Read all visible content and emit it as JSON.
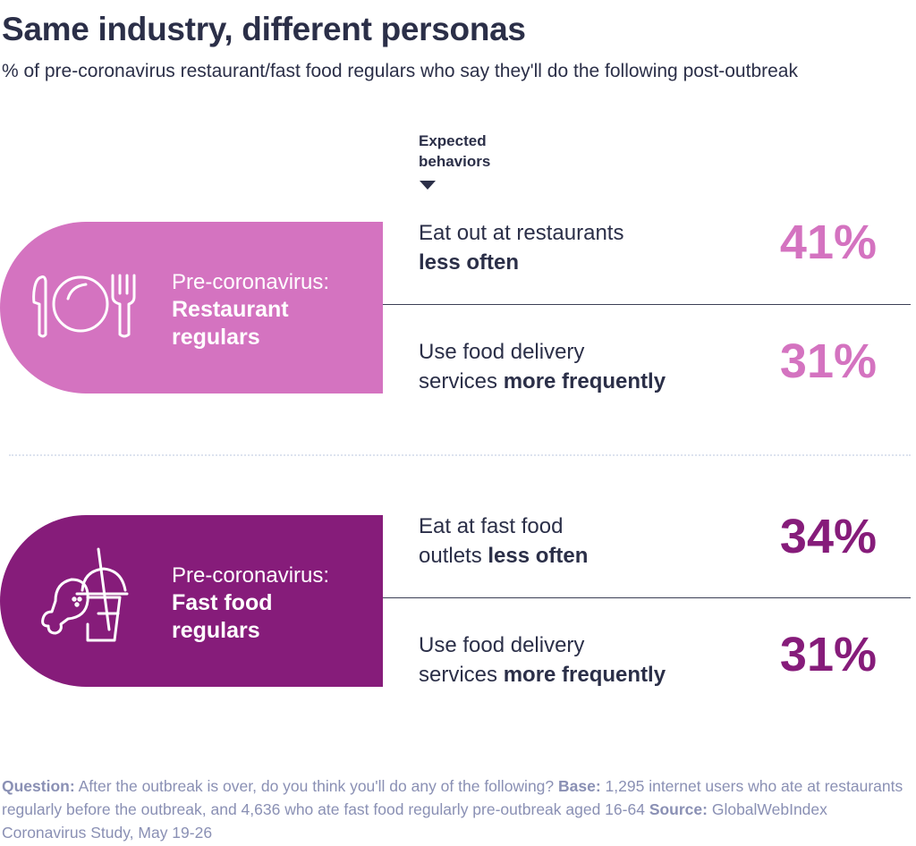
{
  "title": "Same industry, different personas",
  "subtitle": "% of pre-coronavirus restaurant/fast food regulars who say they'll do the following post-outbreak",
  "column_header": {
    "line1": "Expected",
    "line2": "behaviors"
  },
  "colors": {
    "restaurant": "#d473c0",
    "fast_food": "#861c7a",
    "text": "#2b2f48",
    "footer": "#8a90b4"
  },
  "groups": [
    {
      "prefix": "Pre-coronavirus:",
      "name_line1": "Restaurant",
      "name_line2": "regulars",
      "icon": "plate-cutlery-icon",
      "behaviors": [
        {
          "text": "Eat out at restaurants",
          "bold": "less often",
          "value": "41%"
        },
        {
          "text": "Use food delivery",
          "text2": "services",
          "bold": "more frequently",
          "value": "31%"
        }
      ]
    },
    {
      "prefix": "Pre-coronavirus:",
      "name_line1": "Fast food",
      "name_line2": "regulars",
      "icon": "chicken-drink-icon",
      "behaviors": [
        {
          "text": "Eat at fast food",
          "text2": "outlets",
          "bold": "less often",
          "value": "34%"
        },
        {
          "text": "Use food delivery",
          "text2": "services",
          "bold": "more frequently",
          "value": "31%"
        }
      ]
    }
  ],
  "footer": {
    "question_label": "Question:",
    "question": " After the outbreak is over, do you think you'll do any of the following? ",
    "base_label": "Base:",
    "base": " 1,295 internet users who ate at restaurants regularly before the outbreak, and 4,636 who ate fast food regularly pre-outbreak aged 16-64 ",
    "source_label": "Source:",
    "source": " GlobalWebIndex Coronavirus Study, May 19-26"
  }
}
